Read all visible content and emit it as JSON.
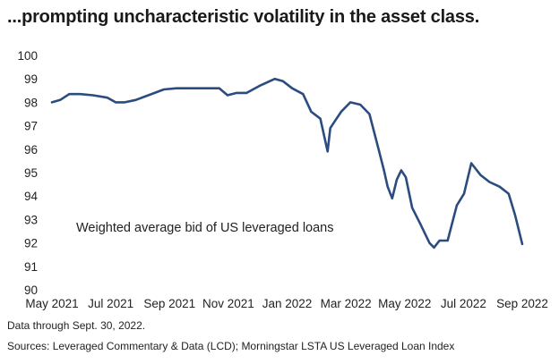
{
  "title": "...prompting uncharacteristic volatility in the asset class.",
  "footnote_1": "Data through Sept. 30, 2022.",
  "footnote_2": "Sources: Leveraged Commentary & Data (LCD); Morningstar LSTA US Leveraged Loan Index",
  "colors": {
    "line": "#2b4c7e"
  },
  "chart_data": {
    "type": "line",
    "title": "...prompting uncharacteristic volatility in the asset class.",
    "annotation": "Weighted average bid of US leveraged loans",
    "xlabel": "",
    "ylabel": "",
    "ylim": [
      90,
      100
    ],
    "yticks": [
      90,
      91,
      92,
      93,
      94,
      95,
      96,
      97,
      98,
      99,
      100
    ],
    "xlim": [
      "2021-05-01",
      "2022-09-30"
    ],
    "xticks": [
      "May 2021",
      "Jul 2021",
      "Sep 2021",
      "Nov 2021",
      "Jan 2022",
      "Mar 2022",
      "May 2022",
      "Jul 2022",
      "Sep 2022"
    ],
    "grid": false,
    "legend": "none",
    "series": [
      {
        "x": [
          "2021-05-01",
          "2021-05-10",
          "2021-05-20",
          "2021-06-01",
          "2021-06-15",
          "2021-07-01",
          "2021-07-10",
          "2021-07-20",
          "2021-08-01",
          "2021-08-15",
          "2021-09-01",
          "2021-09-15",
          "2021-10-01",
          "2021-10-15",
          "2021-11-01",
          "2021-11-10",
          "2021-11-20",
          "2021-12-01",
          "2021-12-15",
          "2022-01-01",
          "2022-01-10",
          "2022-01-20",
          "2022-02-01",
          "2022-02-10",
          "2022-02-20",
          "2022-02-28",
          "2022-03-03",
          "2022-03-08",
          "2022-03-15",
          "2022-03-25",
          "2022-04-05",
          "2022-04-15",
          "2022-04-25",
          "2022-05-01",
          "2022-05-05",
          "2022-05-10",
          "2022-05-15",
          "2022-05-20",
          "2022-05-25",
          "2022-06-01",
          "2022-06-10",
          "2022-06-20",
          "2022-06-25",
          "2022-07-01",
          "2022-07-10",
          "2022-07-20",
          "2022-07-28",
          "2022-08-05",
          "2022-08-15",
          "2022-08-25",
          "2022-09-05",
          "2022-09-15",
          "2022-09-22",
          "2022-09-30"
        ],
        "y": [
          98.0,
          98.1,
          98.35,
          98.35,
          98.3,
          98.2,
          98.0,
          98.0,
          98.1,
          98.3,
          98.55,
          98.6,
          98.6,
          98.6,
          98.6,
          98.3,
          98.4,
          98.4,
          98.7,
          99.0,
          98.9,
          98.6,
          98.35,
          97.6,
          97.3,
          95.9,
          96.9,
          97.2,
          97.6,
          98.0,
          97.9,
          97.5,
          96.0,
          95.1,
          94.4,
          93.9,
          94.7,
          95.1,
          94.8,
          93.5,
          92.8,
          92.0,
          91.8,
          92.1,
          92.1,
          93.6,
          94.1,
          95.4,
          94.9,
          94.6,
          94.4,
          94.1,
          93.2,
          91.95
        ]
      }
    ]
  }
}
